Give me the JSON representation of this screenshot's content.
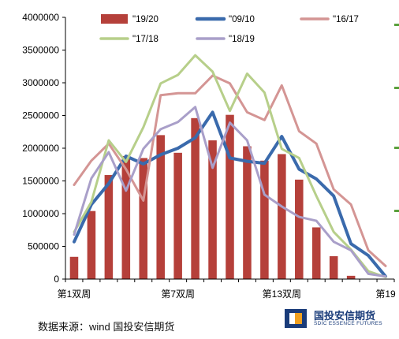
{
  "chart_data": {
    "type": "bar+line",
    "x_tick_labels": [
      {
        "week": 1,
        "label": "第1双周"
      },
      {
        "week": 7,
        "label": "第7双周"
      },
      {
        "week": 13,
        "label": "第13双周"
      },
      {
        "week": 19,
        "label": "第19"
      }
    ],
    "ylim": [
      0,
      4000000
    ],
    "y_ticks": [
      0,
      500000,
      1000000,
      1500000,
      2000000,
      2500000,
      3000000,
      3500000,
      4000000
    ],
    "y_tick_labels": [
      "0",
      "500000",
      "1000000",
      "1500000",
      "2000000",
      "2500000",
      "3000000",
      "3500000",
      "4000000"
    ],
    "legend_position": "top",
    "bar_series": {
      "name": "\"19/20",
      "color": "#b5403a",
      "values": [
        340000,
        1040000,
        1590000,
        1880000,
        1850000,
        2200000,
        1930000,
        2460000,
        2120000,
        2510000,
        2030000,
        1810000,
        1910000,
        1520000,
        790000,
        350000,
        50000,
        null,
        null
      ]
    },
    "line_series": [
      {
        "name": "\"09/10",
        "color": "#3a6aac",
        "width": 4,
        "values": [
          570000,
          1140000,
          1460000,
          1880000,
          1760000,
          1900000,
          2000000,
          2160000,
          2550000,
          1850000,
          1800000,
          1770000,
          2180000,
          1680000,
          1530000,
          1270000,
          540000,
          360000,
          40000
        ]
      },
      {
        "name": "\"16/17",
        "color": "#d49594",
        "width": 3,
        "values": [
          1440000,
          1810000,
          2070000,
          1680000,
          1200000,
          2810000,
          2840000,
          2840000,
          3110000,
          2990000,
          2550000,
          2430000,
          2960000,
          2260000,
          2070000,
          1370000,
          1140000,
          440000,
          200000
        ]
      },
      {
        "name": "\"17/18",
        "color": "#b7cf8a",
        "width": 3,
        "values": [
          720000,
          1180000,
          2120000,
          1790000,
          2320000,
          2990000,
          3120000,
          3420000,
          3170000,
          2570000,
          3140000,
          2850000,
          1990000,
          1850000,
          1270000,
          720000,
          450000,
          120000,
          30000
        ]
      },
      {
        "name": "\"18/19",
        "color": "#a99fc9",
        "width": 3,
        "values": [
          680000,
          1540000,
          1940000,
          1350000,
          1990000,
          2290000,
          2400000,
          2630000,
          1700000,
          2390000,
          2120000,
          1290000,
          1110000,
          950000,
          890000,
          570000,
          440000,
          80000,
          40000
        ]
      }
    ]
  },
  "source": "数据来源：wind 国投安信期货",
  "logo": {
    "cn": "国投安信期货",
    "en": "SDIC ESSENCE FUTURES"
  }
}
